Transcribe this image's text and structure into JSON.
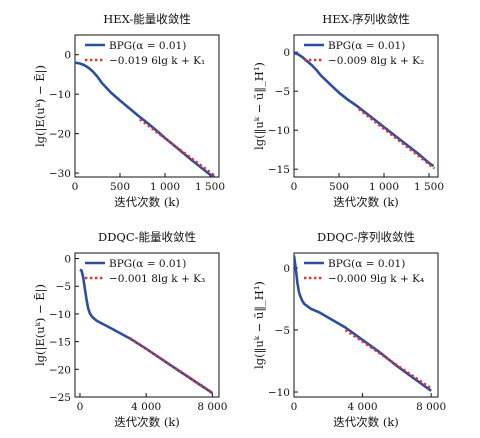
{
  "chart_data": [
    {
      "type": "line",
      "title": "HEX-能量收敛性",
      "xlabel": "迭代次数 (k)",
      "ylabel": "lg(|E(uᵏ) − Ē|)",
      "xlim": [
        0,
        1600
      ],
      "ylim": [
        -31,
        5
      ],
      "xticks": [
        0,
        500,
        1000,
        1500
      ],
      "xtick_labels": [
        "0",
        "500",
        "1 000",
        "1 500"
      ],
      "yticks": [
        0,
        -10,
        -20,
        -30
      ],
      "ytick_labels": [
        "0",
        "−10",
        "−20",
        "−30"
      ],
      "legend_position": "top-right",
      "series": [
        {
          "name": "BPG(α = 0.01)",
          "style": "solid",
          "color": "#2a4ea0",
          "x": [
            0,
            50,
            100,
            150,
            200,
            250,
            300,
            400,
            500,
            600,
            700,
            800,
            900,
            1000,
            1100,
            1200,
            1300,
            1400,
            1500,
            1550
          ],
          "y": [
            -2.0,
            -2.2,
            -2.6,
            -3.3,
            -4.3,
            -5.6,
            -7.2,
            -9.6,
            -11.6,
            -13.5,
            -15.4,
            -17.2,
            -19.1,
            -21.1,
            -23.0,
            -24.9,
            -26.8,
            -28.6,
            -30.4,
            -31.0
          ]
        },
        {
          "name": "−0.019 6lg k + K₁",
          "style": "dotted",
          "color": "#e03030",
          "x": [
            720,
            1560
          ],
          "y": [
            -16.4,
            -30.8
          ]
        }
      ]
    },
    {
      "type": "line",
      "title": "HEX-序列收敛性",
      "xlabel": "迭代次数 (k)",
      "ylabel": "lg(‖uᵏ − ū‖_H¹)",
      "xlim": [
        0,
        1600
      ],
      "ylim": [
        -16,
        2.2
      ],
      "xticks": [
        0,
        500,
        1000,
        1500
      ],
      "xtick_labels": [
        "0",
        "500",
        "1 000",
        "1 500"
      ],
      "yticks": [
        0,
        -5,
        -10,
        -15
      ],
      "ytick_labels": [
        "0",
        "−5",
        "−10",
        "−15"
      ],
      "legend_position": "top-right",
      "series": [
        {
          "name": "BPG(α = 0.01)",
          "style": "solid",
          "color": "#2a4ea0",
          "x": [
            0,
            50,
            100,
            150,
            200,
            250,
            300,
            400,
            500,
            600,
            700,
            800,
            900,
            1000,
            1100,
            1200,
            1300,
            1400,
            1500,
            1550
          ],
          "y": [
            -0.1,
            -0.3,
            -0.7,
            -1.2,
            -1.7,
            -2.3,
            -3.0,
            -4.1,
            -5.2,
            -6.1,
            -6.9,
            -7.8,
            -8.7,
            -9.6,
            -10.5,
            -11.4,
            -12.3,
            -13.2,
            -14.2,
            -14.6
          ]
        },
        {
          "name": "−0.009 8lg k + K₂",
          "style": "dotted",
          "color": "#e03030",
          "x": [
            720,
            1560
          ],
          "y": [
            -7.3,
            -14.9
          ]
        }
      ]
    },
    {
      "type": "line",
      "title": "DDQC-能量收敛性",
      "xlabel": "迭代次数 (k)",
      "ylabel": "lg(|E(uᵏ) − Ē|)",
      "xlim": [
        -300,
        8400
      ],
      "ylim": [
        -25,
        1
      ],
      "xticks": [
        0,
        4000,
        8000
      ],
      "xtick_labels": [
        "0",
        "4 000",
        "8 000"
      ],
      "yticks": [
        0,
        -5,
        -10,
        -15,
        -20,
        -25
      ],
      "ytick_labels": [
        "0",
        "−5",
        "−10",
        "−15",
        "−20",
        "−25"
      ],
      "legend_position": "top-right",
      "series": [
        {
          "name": "BPG(α = 0.01)",
          "style": "solid",
          "color": "#2a4ea0",
          "x": [
            0,
            100,
            200,
            300,
            400,
            500,
            600,
            700,
            800,
            1000,
            1500,
            2000,
            2500,
            3000,
            4000,
            5000,
            6000,
            7000,
            8000
          ],
          "y": [
            -2.0,
            -2.2,
            -3.5,
            -5.5,
            -7.5,
            -9.0,
            -9.9,
            -10.4,
            -10.7,
            -11.2,
            -12.0,
            -12.8,
            -13.6,
            -14.4,
            -16.3,
            -18.3,
            -20.3,
            -22.3,
            -24.3
          ]
        },
        {
          "name": "−0.001 8lg k + K₃",
          "style": "dotted",
          "color": "#e03030",
          "x": [
            3000,
            8000
          ],
          "y": [
            -14.3,
            -24.2
          ]
        }
      ]
    },
    {
      "type": "line",
      "title": "DDQC-序列收敛性",
      "xlabel": "迭代次数 (k)",
      "ylabel": "lg(‖uᵏ − ū‖_H¹)",
      "xlim": [
        0,
        8400
      ],
      "ylim": [
        -10.4,
        1.2
      ],
      "xticks": [
        0,
        4000,
        8000
      ],
      "xtick_labels": [
        "0",
        "4 000",
        "8 000"
      ],
      "yticks": [
        0,
        -5,
        -10
      ],
      "ytick_labels": [
        "0",
        "−5",
        "−10"
      ],
      "legend_position": "top-right",
      "series": [
        {
          "name": "BPG(α = 0.01)",
          "style": "solid",
          "color": "#2a4ea0",
          "x": [
            0,
            100,
            200,
            300,
            400,
            500,
            600,
            800,
            1000,
            1500,
            2000,
            3000,
            4000,
            5000,
            6000,
            7000,
            8000
          ],
          "y": [
            1.0,
            0.0,
            -1.2,
            -2.0,
            -2.4,
            -2.7,
            -2.9,
            -3.1,
            -3.3,
            -3.6,
            -4.0,
            -4.8,
            -5.8,
            -6.8,
            -7.9,
            -8.9,
            -9.9
          ]
        },
        {
          "name": "−0.000 9lg k + K₄",
          "style": "dotted",
          "color": "#e03030",
          "x": [
            3000,
            8000
          ],
          "y": [
            -5.0,
            -9.7
          ]
        }
      ]
    }
  ]
}
